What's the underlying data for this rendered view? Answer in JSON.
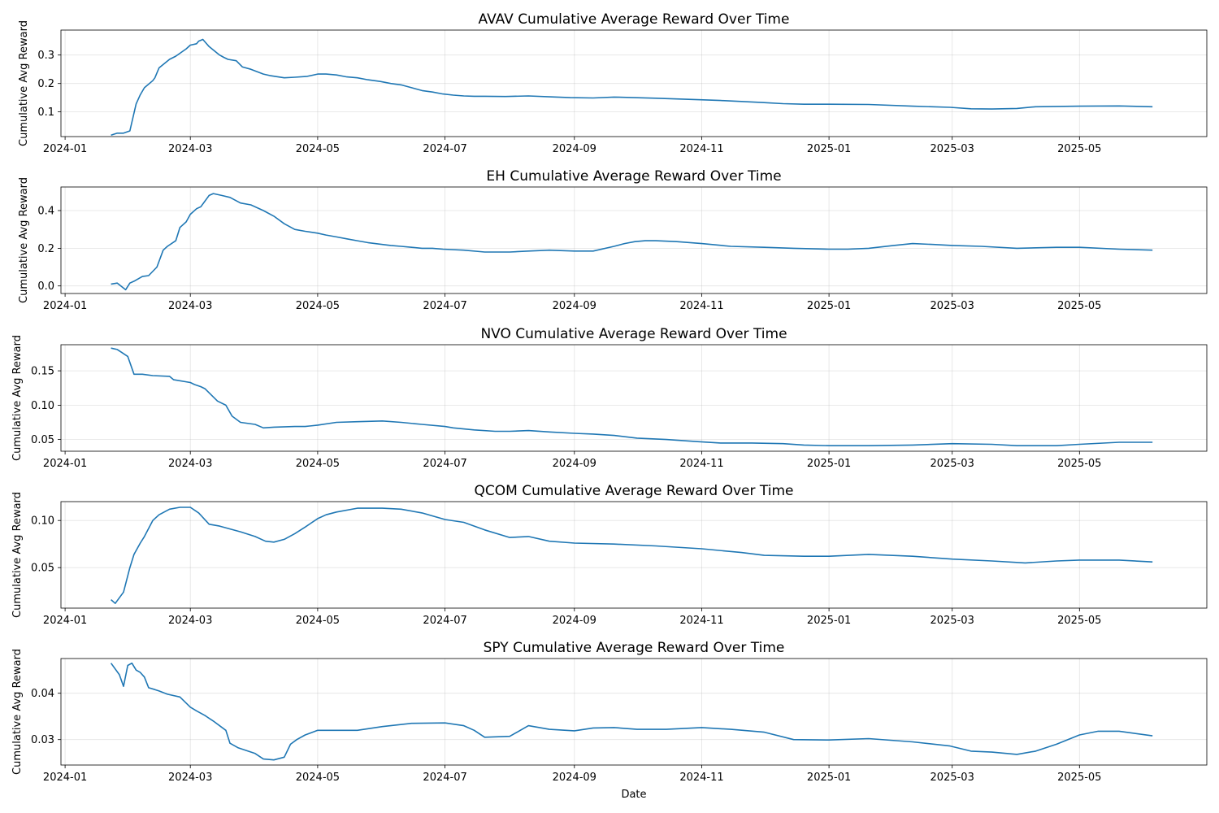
{
  "figure": {
    "xlabel": "Date"
  },
  "chart_data": [
    {
      "type": "line",
      "title": "AVAV Cumulative Average Reward Over Time",
      "xlabel": "",
      "ylabel": "Cumulative Avg Reward",
      "xlim": [
        "2023-12-30",
        "2025-07-01"
      ],
      "ylim": [
        0.013,
        0.388
      ],
      "xticks": [
        "2024-01",
        "2024-03",
        "2024-05",
        "2024-07",
        "2024-09",
        "2024-11",
        "2025-01",
        "2025-03",
        "2025-05"
      ],
      "xtick_dates": [
        "2024-01-01",
        "2024-03-01",
        "2024-05-01",
        "2024-07-01",
        "2024-09-01",
        "2024-11-01",
        "2025-01-01",
        "2025-03-01",
        "2025-05-01"
      ],
      "yticks": [
        "0.1",
        "0.2",
        "0.3"
      ],
      "ytick_values": [
        0.1,
        0.2,
        0.3
      ],
      "grid": true,
      "color": "#1f77b4",
      "series": [
        {
          "x": [
            "2024-01-23",
            "2024-01-26",
            "2024-01-29",
            "2024-02-01",
            "2024-02-04",
            "2024-02-06",
            "2024-02-08",
            "2024-02-12",
            "2024-02-13",
            "2024-02-15",
            "2024-02-20",
            "2024-02-23",
            "2024-02-28",
            "2024-03-01",
            "2024-03-04",
            "2024-03-05",
            "2024-03-07",
            "2024-03-10",
            "2024-03-15",
            "2024-03-17",
            "2024-03-19",
            "2024-03-23",
            "2024-03-26",
            "2024-03-30",
            "2024-04-05",
            "2024-04-08",
            "2024-04-15",
            "2024-04-20",
            "2024-04-26",
            "2024-05-01",
            "2024-05-05",
            "2024-05-10",
            "2024-05-15",
            "2024-05-20",
            "2024-05-25",
            "2024-05-31",
            "2024-06-05",
            "2024-06-10",
            "2024-06-15",
            "2024-06-20",
            "2024-06-25",
            "2024-06-30",
            "2024-07-05",
            "2024-07-10",
            "2024-07-15",
            "2024-07-20",
            "2024-07-30",
            "2024-08-10",
            "2024-08-20",
            "2024-08-30",
            "2024-09-10",
            "2024-09-20",
            "2024-10-10",
            "2024-10-30",
            "2024-11-10",
            "2024-11-30",
            "2024-12-10",
            "2024-12-20",
            "2025-01-01",
            "2025-01-20",
            "2025-02-10",
            "2025-02-28",
            "2025-03-10",
            "2025-03-20",
            "2025-04-01",
            "2025-04-10",
            "2025-05-01",
            "2025-05-20",
            "2025-06-05"
          ],
          "y": [
            0.018,
            0.025,
            0.025,
            0.033,
            0.128,
            0.16,
            0.185,
            0.21,
            0.22,
            0.255,
            0.285,
            0.296,
            0.322,
            0.335,
            0.34,
            0.349,
            0.355,
            0.33,
            0.3,
            0.292,
            0.285,
            0.28,
            0.258,
            0.25,
            0.233,
            0.228,
            0.22,
            0.222,
            0.225,
            0.233,
            0.233,
            0.23,
            0.223,
            0.22,
            0.213,
            0.207,
            0.2,
            0.195,
            0.185,
            0.175,
            0.17,
            0.163,
            0.159,
            0.156,
            0.155,
            0.155,
            0.154,
            0.156,
            0.153,
            0.15,
            0.149,
            0.152,
            0.148,
            0.143,
            0.14,
            0.133,
            0.129,
            0.127,
            0.127,
            0.126,
            0.12,
            0.116,
            0.111,
            0.11,
            0.112,
            0.118,
            0.12,
            0.121,
            0.118
          ]
        }
      ]
    },
    {
      "type": "line",
      "title": "EH Cumulative Average Reward Over Time",
      "xlabel": "",
      "ylabel": "Cumulative Avg Reward",
      "xlim": [
        "2023-12-30",
        "2025-07-01"
      ],
      "ylim": [
        -0.04,
        0.525
      ],
      "xticks": [
        "2024-01",
        "2024-03",
        "2024-05",
        "2024-07",
        "2024-09",
        "2024-11",
        "2025-01",
        "2025-03",
        "2025-05"
      ],
      "xtick_dates": [
        "2024-01-01",
        "2024-03-01",
        "2024-05-01",
        "2024-07-01",
        "2024-09-01",
        "2024-11-01",
        "2025-01-01",
        "2025-03-01",
        "2025-05-01"
      ],
      "yticks": [
        "0.0",
        "0.2",
        "0.4"
      ],
      "ytick_values": [
        0.0,
        0.2,
        0.4
      ],
      "grid": true,
      "color": "#1f77b4",
      "series": [
        {
          "x": [
            "2024-01-23",
            "2024-01-26",
            "2024-01-30",
            "2024-02-01",
            "2024-02-03",
            "2024-02-07",
            "2024-02-10",
            "2024-02-14",
            "2024-02-17",
            "2024-02-19",
            "2024-02-23",
            "2024-02-25",
            "2024-02-28",
            "2024-03-01",
            "2024-03-04",
            "2024-03-06",
            "2024-03-08",
            "2024-03-10",
            "2024-03-12",
            "2024-03-16",
            "2024-03-20",
            "2024-03-25",
            "2024-03-30",
            "2024-04-05",
            "2024-04-10",
            "2024-04-15",
            "2024-04-20",
            "2024-04-25",
            "2024-05-01",
            "2024-05-05",
            "2024-05-10",
            "2024-05-15",
            "2024-05-20",
            "2024-05-25",
            "2024-06-01",
            "2024-06-05",
            "2024-06-10",
            "2024-06-15",
            "2024-06-20",
            "2024-06-25",
            "2024-06-30",
            "2024-07-10",
            "2024-07-20",
            "2024-08-01",
            "2024-08-10",
            "2024-08-20",
            "2024-09-01",
            "2024-09-10",
            "2024-09-20",
            "2024-09-25",
            "2024-09-30",
            "2024-10-05",
            "2024-10-10",
            "2024-10-20",
            "2024-11-01",
            "2024-11-15",
            "2024-12-01",
            "2024-12-15",
            "2025-01-01",
            "2025-01-10",
            "2025-01-20",
            "2025-02-01",
            "2025-02-10",
            "2025-02-20",
            "2025-03-01",
            "2025-03-15",
            "2025-04-01",
            "2025-04-20",
            "2025-05-01",
            "2025-05-20",
            "2025-06-05"
          ],
          "y": [
            0.01,
            0.015,
            -0.02,
            0.015,
            0.025,
            0.05,
            0.055,
            0.1,
            0.19,
            0.21,
            0.24,
            0.31,
            0.34,
            0.38,
            0.41,
            0.42,
            0.45,
            0.48,
            0.49,
            0.48,
            0.47,
            0.44,
            0.43,
            0.4,
            0.37,
            0.33,
            0.3,
            0.29,
            0.28,
            0.27,
            0.26,
            0.25,
            0.24,
            0.23,
            0.22,
            0.215,
            0.21,
            0.205,
            0.2,
            0.2,
            0.195,
            0.19,
            0.18,
            0.18,
            0.185,
            0.19,
            0.185,
            0.185,
            0.21,
            0.225,
            0.235,
            0.24,
            0.24,
            0.235,
            0.225,
            0.21,
            0.205,
            0.2,
            0.195,
            0.195,
            0.2,
            0.215,
            0.225,
            0.22,
            0.215,
            0.21,
            0.2,
            0.205,
            0.205,
            0.195,
            0.19
          ]
        }
      ]
    },
    {
      "type": "line",
      "title": "NVO Cumulative Average Reward Over Time",
      "xlabel": "",
      "ylabel": "Cumulative Avg Reward",
      "xlim": [
        "2023-12-30",
        "2025-07-01"
      ],
      "ylim": [
        0.033,
        0.188
      ],
      "xticks": [
        "2024-01",
        "2024-03",
        "2024-05",
        "2024-07",
        "2024-09",
        "2024-11",
        "2025-01",
        "2025-03",
        "2025-05"
      ],
      "xtick_dates": [
        "2024-01-01",
        "2024-03-01",
        "2024-05-01",
        "2024-07-01",
        "2024-09-01",
        "2024-11-01",
        "2025-01-01",
        "2025-03-01",
        "2025-05-01"
      ],
      "yticks": [
        "0.05",
        "0.10",
        "0.15"
      ],
      "ytick_values": [
        0.05,
        0.1,
        0.15
      ],
      "grid": true,
      "color": "#1f77b4",
      "series": [
        {
          "x": [
            "2024-01-23",
            "2024-01-26",
            "2024-01-28",
            "2024-01-31",
            "2024-02-03",
            "2024-02-07",
            "2024-02-12",
            "2024-02-20",
            "2024-02-22",
            "2024-03-01",
            "2024-03-03",
            "2024-03-06",
            "2024-03-08",
            "2024-03-14",
            "2024-03-18",
            "2024-03-21",
            "2024-03-25",
            "2024-04-01",
            "2024-04-05",
            "2024-04-10",
            "2024-04-20",
            "2024-04-25",
            "2024-05-01",
            "2024-05-10",
            "2024-05-20",
            "2024-06-01",
            "2024-06-10",
            "2024-06-20",
            "2024-07-01",
            "2024-07-05",
            "2024-07-15",
            "2024-07-25",
            "2024-08-01",
            "2024-08-10",
            "2024-08-20",
            "2024-09-01",
            "2024-09-10",
            "2024-09-20",
            "2024-10-01",
            "2024-10-15",
            "2024-10-30",
            "2024-11-10",
            "2024-11-25",
            "2024-12-10",
            "2024-12-20",
            "2025-01-01",
            "2025-01-20",
            "2025-02-10",
            "2025-03-01",
            "2025-03-20",
            "2025-04-01",
            "2025-04-20",
            "2025-05-01",
            "2025-05-20",
            "2025-06-05"
          ],
          "y": [
            0.183,
            0.181,
            0.177,
            0.171,
            0.145,
            0.145,
            0.143,
            0.142,
            0.137,
            0.133,
            0.13,
            0.127,
            0.124,
            0.106,
            0.1,
            0.084,
            0.075,
            0.072,
            0.067,
            0.068,
            0.069,
            0.069,
            0.071,
            0.075,
            0.076,
            0.077,
            0.075,
            0.072,
            0.069,
            0.067,
            0.064,
            0.062,
            0.062,
            0.063,
            0.061,
            0.059,
            0.058,
            0.056,
            0.052,
            0.05,
            0.047,
            0.045,
            0.045,
            0.044,
            0.042,
            0.041,
            0.041,
            0.042,
            0.044,
            0.043,
            0.041,
            0.041,
            0.043,
            0.046,
            0.046
          ]
        }
      ]
    },
    {
      "type": "line",
      "title": "QCOM Cumulative Average Reward Over Time",
      "xlabel": "",
      "ylabel": "Cumulative Avg Reward",
      "xlim": [
        "2023-12-30",
        "2025-07-01"
      ],
      "ylim": [
        0.007,
        0.12
      ],
      "xticks": [
        "2024-01",
        "2024-03",
        "2024-05",
        "2024-07",
        "2024-09",
        "2024-11",
        "2025-01",
        "2025-03",
        "2025-05"
      ],
      "xtick_dates": [
        "2024-01-01",
        "2024-03-01",
        "2024-05-01",
        "2024-07-01",
        "2024-09-01",
        "2024-11-01",
        "2025-01-01",
        "2025-03-01",
        "2025-05-01"
      ],
      "yticks": [
        "0.05",
        "0.10"
      ],
      "ytick_values": [
        0.05,
        0.1
      ],
      "grid": true,
      "color": "#1f77b4",
      "series": [
        {
          "x": [
            "2024-01-23",
            "2024-01-25",
            "2024-01-29",
            "2024-02-01",
            "2024-02-03",
            "2024-02-06",
            "2024-02-08",
            "2024-02-12",
            "2024-02-15",
            "2024-02-20",
            "2024-02-25",
            "2024-03-01",
            "2024-03-05",
            "2024-03-10",
            "2024-03-15",
            "2024-03-20",
            "2024-03-25",
            "2024-04-01",
            "2024-04-06",
            "2024-04-10",
            "2024-04-15",
            "2024-04-20",
            "2024-04-25",
            "2024-05-01",
            "2024-05-05",
            "2024-05-10",
            "2024-05-20",
            "2024-06-01",
            "2024-06-10",
            "2024-06-20",
            "2024-07-01",
            "2024-07-10",
            "2024-07-20",
            "2024-08-01",
            "2024-08-10",
            "2024-08-20",
            "2024-09-01",
            "2024-09-20",
            "2024-10-10",
            "2024-11-01",
            "2024-11-20",
            "2024-12-01",
            "2024-12-20",
            "2025-01-01",
            "2025-01-20",
            "2025-02-10",
            "2025-03-01",
            "2025-03-20",
            "2025-04-05",
            "2025-04-20",
            "2025-05-01",
            "2025-05-20",
            "2025-06-05"
          ],
          "y": [
            0.016,
            0.012,
            0.024,
            0.05,
            0.064,
            0.076,
            0.083,
            0.1,
            0.106,
            0.112,
            0.114,
            0.114,
            0.108,
            0.096,
            0.094,
            0.091,
            0.088,
            0.083,
            0.078,
            0.077,
            0.08,
            0.086,
            0.093,
            0.102,
            0.106,
            0.109,
            0.113,
            0.113,
            0.112,
            0.108,
            0.101,
            0.098,
            0.09,
            0.082,
            0.083,
            0.078,
            0.076,
            0.075,
            0.073,
            0.07,
            0.066,
            0.063,
            0.062,
            0.062,
            0.064,
            0.062,
            0.059,
            0.057,
            0.055,
            0.057,
            0.058,
            0.058,
            0.056
          ]
        }
      ]
    },
    {
      "type": "line",
      "title": "SPY Cumulative Average Reward Over Time",
      "xlabel": "Date",
      "ylabel": "Cumulative Avg Reward",
      "xlim": [
        "2023-12-30",
        "2025-07-01"
      ],
      "ylim": [
        0.0245,
        0.0475
      ],
      "xticks": [
        "2024-01",
        "2024-03",
        "2024-05",
        "2024-07",
        "2024-09",
        "2024-11",
        "2025-01",
        "2025-03",
        "2025-05"
      ],
      "xtick_dates": [
        "2024-01-01",
        "2024-03-01",
        "2024-05-01",
        "2024-07-01",
        "2024-09-01",
        "2024-11-01",
        "2025-01-01",
        "2025-03-01",
        "2025-05-01"
      ],
      "yticks": [
        "0.03",
        "0.04"
      ],
      "ytick_values": [
        0.03,
        0.04
      ],
      "grid": true,
      "color": "#1f77b4",
      "series": [
        {
          "x": [
            "2024-01-23",
            "2024-01-27",
            "2024-01-29",
            "2024-01-31",
            "2024-02-02",
            "2024-02-04",
            "2024-02-06",
            "2024-02-08",
            "2024-02-10",
            "2024-02-13",
            "2024-02-15",
            "2024-02-19",
            "2024-02-25",
            "2024-03-01",
            "2024-03-04",
            "2024-03-08",
            "2024-03-12",
            "2024-03-18",
            "2024-03-20",
            "2024-03-24",
            "2024-04-01",
            "2024-04-05",
            "2024-04-10",
            "2024-04-15",
            "2024-04-18",
            "2024-04-21",
            "2024-04-25",
            "2024-05-01",
            "2024-05-10",
            "2024-05-20",
            "2024-06-01",
            "2024-06-15",
            "2024-07-01",
            "2024-07-10",
            "2024-07-15",
            "2024-07-20",
            "2024-08-01",
            "2024-08-10",
            "2024-08-20",
            "2024-09-01",
            "2024-09-10",
            "2024-09-20",
            "2024-10-01",
            "2024-10-15",
            "2024-11-01",
            "2024-11-15",
            "2024-12-01",
            "2024-12-15",
            "2025-01-01",
            "2025-01-20",
            "2025-02-10",
            "2025-02-28",
            "2025-03-10",
            "2025-03-20",
            "2025-04-01",
            "2025-04-10",
            "2025-04-20",
            "2025-05-01",
            "2025-05-10",
            "2025-05-20",
            "2025-06-05"
          ],
          "y": [
            0.0465,
            0.044,
            0.0415,
            0.046,
            0.0465,
            0.045,
            0.0445,
            0.0435,
            0.0412,
            0.0408,
            0.0405,
            0.0398,
            0.0392,
            0.037,
            0.0362,
            0.0352,
            0.034,
            0.032,
            0.0292,
            0.0282,
            0.027,
            0.0258,
            0.0256,
            0.0262,
            0.029,
            0.03,
            0.031,
            0.032,
            0.032,
            0.032,
            0.0328,
            0.0335,
            0.0336,
            0.033,
            0.032,
            0.0305,
            0.0307,
            0.033,
            0.0322,
            0.0319,
            0.0325,
            0.0326,
            0.0322,
            0.0322,
            0.0326,
            0.0322,
            0.0316,
            0.03,
            0.0299,
            0.0302,
            0.0295,
            0.0286,
            0.0275,
            0.0273,
            0.0268,
            0.0275,
            0.029,
            0.031,
            0.0318,
            0.0318,
            0.0308
          ]
        }
      ]
    }
  ]
}
